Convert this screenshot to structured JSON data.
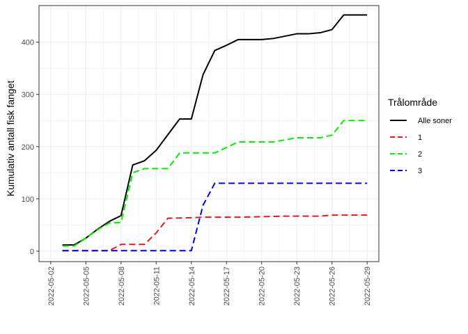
{
  "chart_data": {
    "type": "line",
    "title": "",
    "xlabel": "",
    "ylabel": "Kumulativ antall fisk fanget",
    "xlim": [
      "2022-05-01",
      "2022-05-30"
    ],
    "ylim": [
      -20,
      470
    ],
    "x_ticks": [
      "2022-05-02",
      "2022-05-05",
      "2022-05-08",
      "2022-05-11",
      "2022-05-14",
      "2022-05-17",
      "2022-05-20",
      "2022-05-23",
      "2022-05-26",
      "2022-05-29"
    ],
    "y_ticks": [
      0,
      100,
      200,
      300,
      400
    ],
    "grid": true,
    "legend": {
      "title": "Trålområde",
      "position": "right"
    },
    "series": [
      {
        "name": "Alle soner",
        "color": "#000000",
        "dash": "solid",
        "points": [
          [
            "2022-05-03",
            12
          ],
          [
            "2022-05-04",
            12
          ],
          [
            "2022-05-05",
            25
          ],
          [
            "2022-05-06",
            42
          ],
          [
            "2022-05-07",
            57
          ],
          [
            "2022-05-08",
            68
          ],
          [
            "2022-05-09",
            165
          ],
          [
            "2022-05-10",
            173
          ],
          [
            "2022-05-11",
            193
          ],
          [
            "2022-05-12",
            223
          ],
          [
            "2022-05-13",
            253
          ],
          [
            "2022-05-14",
            253
          ],
          [
            "2022-05-15",
            338
          ],
          [
            "2022-05-16",
            384
          ],
          [
            "2022-05-17",
            394
          ],
          [
            "2022-05-18",
            405
          ],
          [
            "2022-05-20",
            405
          ],
          [
            "2022-05-21",
            407
          ],
          [
            "2022-05-23",
            416
          ],
          [
            "2022-05-24",
            416
          ],
          [
            "2022-05-25",
            418
          ],
          [
            "2022-05-26",
            424
          ],
          [
            "2022-05-27",
            452
          ],
          [
            "2022-05-29",
            452
          ]
        ]
      },
      {
        "name": "1",
        "color": "#e41a1c",
        "dash": "dashed",
        "points": [
          [
            "2022-05-03",
            1
          ],
          [
            "2022-05-07",
            1
          ],
          [
            "2022-05-08",
            13
          ],
          [
            "2022-05-10",
            13
          ],
          [
            "2022-05-11",
            35
          ],
          [
            "2022-05-12",
            63
          ],
          [
            "2022-05-14",
            64
          ],
          [
            "2022-05-15",
            65
          ],
          [
            "2022-05-18",
            65
          ],
          [
            "2022-05-20",
            66
          ],
          [
            "2022-05-22",
            67
          ],
          [
            "2022-05-25",
            67
          ],
          [
            "2022-05-26",
            69
          ],
          [
            "2022-05-29",
            69
          ]
        ]
      },
      {
        "name": "2",
        "color": "#00ee00",
        "dash": "dashed",
        "points": [
          [
            "2022-05-03",
            10
          ],
          [
            "2022-05-04",
            10
          ],
          [
            "2022-05-05",
            25
          ],
          [
            "2022-05-06",
            41
          ],
          [
            "2022-05-07",
            54
          ],
          [
            "2022-05-08",
            55
          ],
          [
            "2022-05-09",
            150
          ],
          [
            "2022-05-10",
            158
          ],
          [
            "2022-05-12",
            158
          ],
          [
            "2022-05-13",
            188
          ],
          [
            "2022-05-16",
            188
          ],
          [
            "2022-05-18",
            209
          ],
          [
            "2022-05-21",
            209
          ],
          [
            "2022-05-23",
            217
          ],
          [
            "2022-05-25",
            217
          ],
          [
            "2022-05-26",
            222
          ],
          [
            "2022-05-27",
            250
          ],
          [
            "2022-05-29",
            250
          ]
        ]
      },
      {
        "name": "3",
        "color": "#0000ee",
        "dash": "dashed",
        "points": [
          [
            "2022-05-03",
            1
          ],
          [
            "2022-05-14",
            1
          ],
          [
            "2022-05-15",
            88
          ],
          [
            "2022-05-16",
            130
          ],
          [
            "2022-05-29",
            130
          ]
        ]
      }
    ]
  }
}
